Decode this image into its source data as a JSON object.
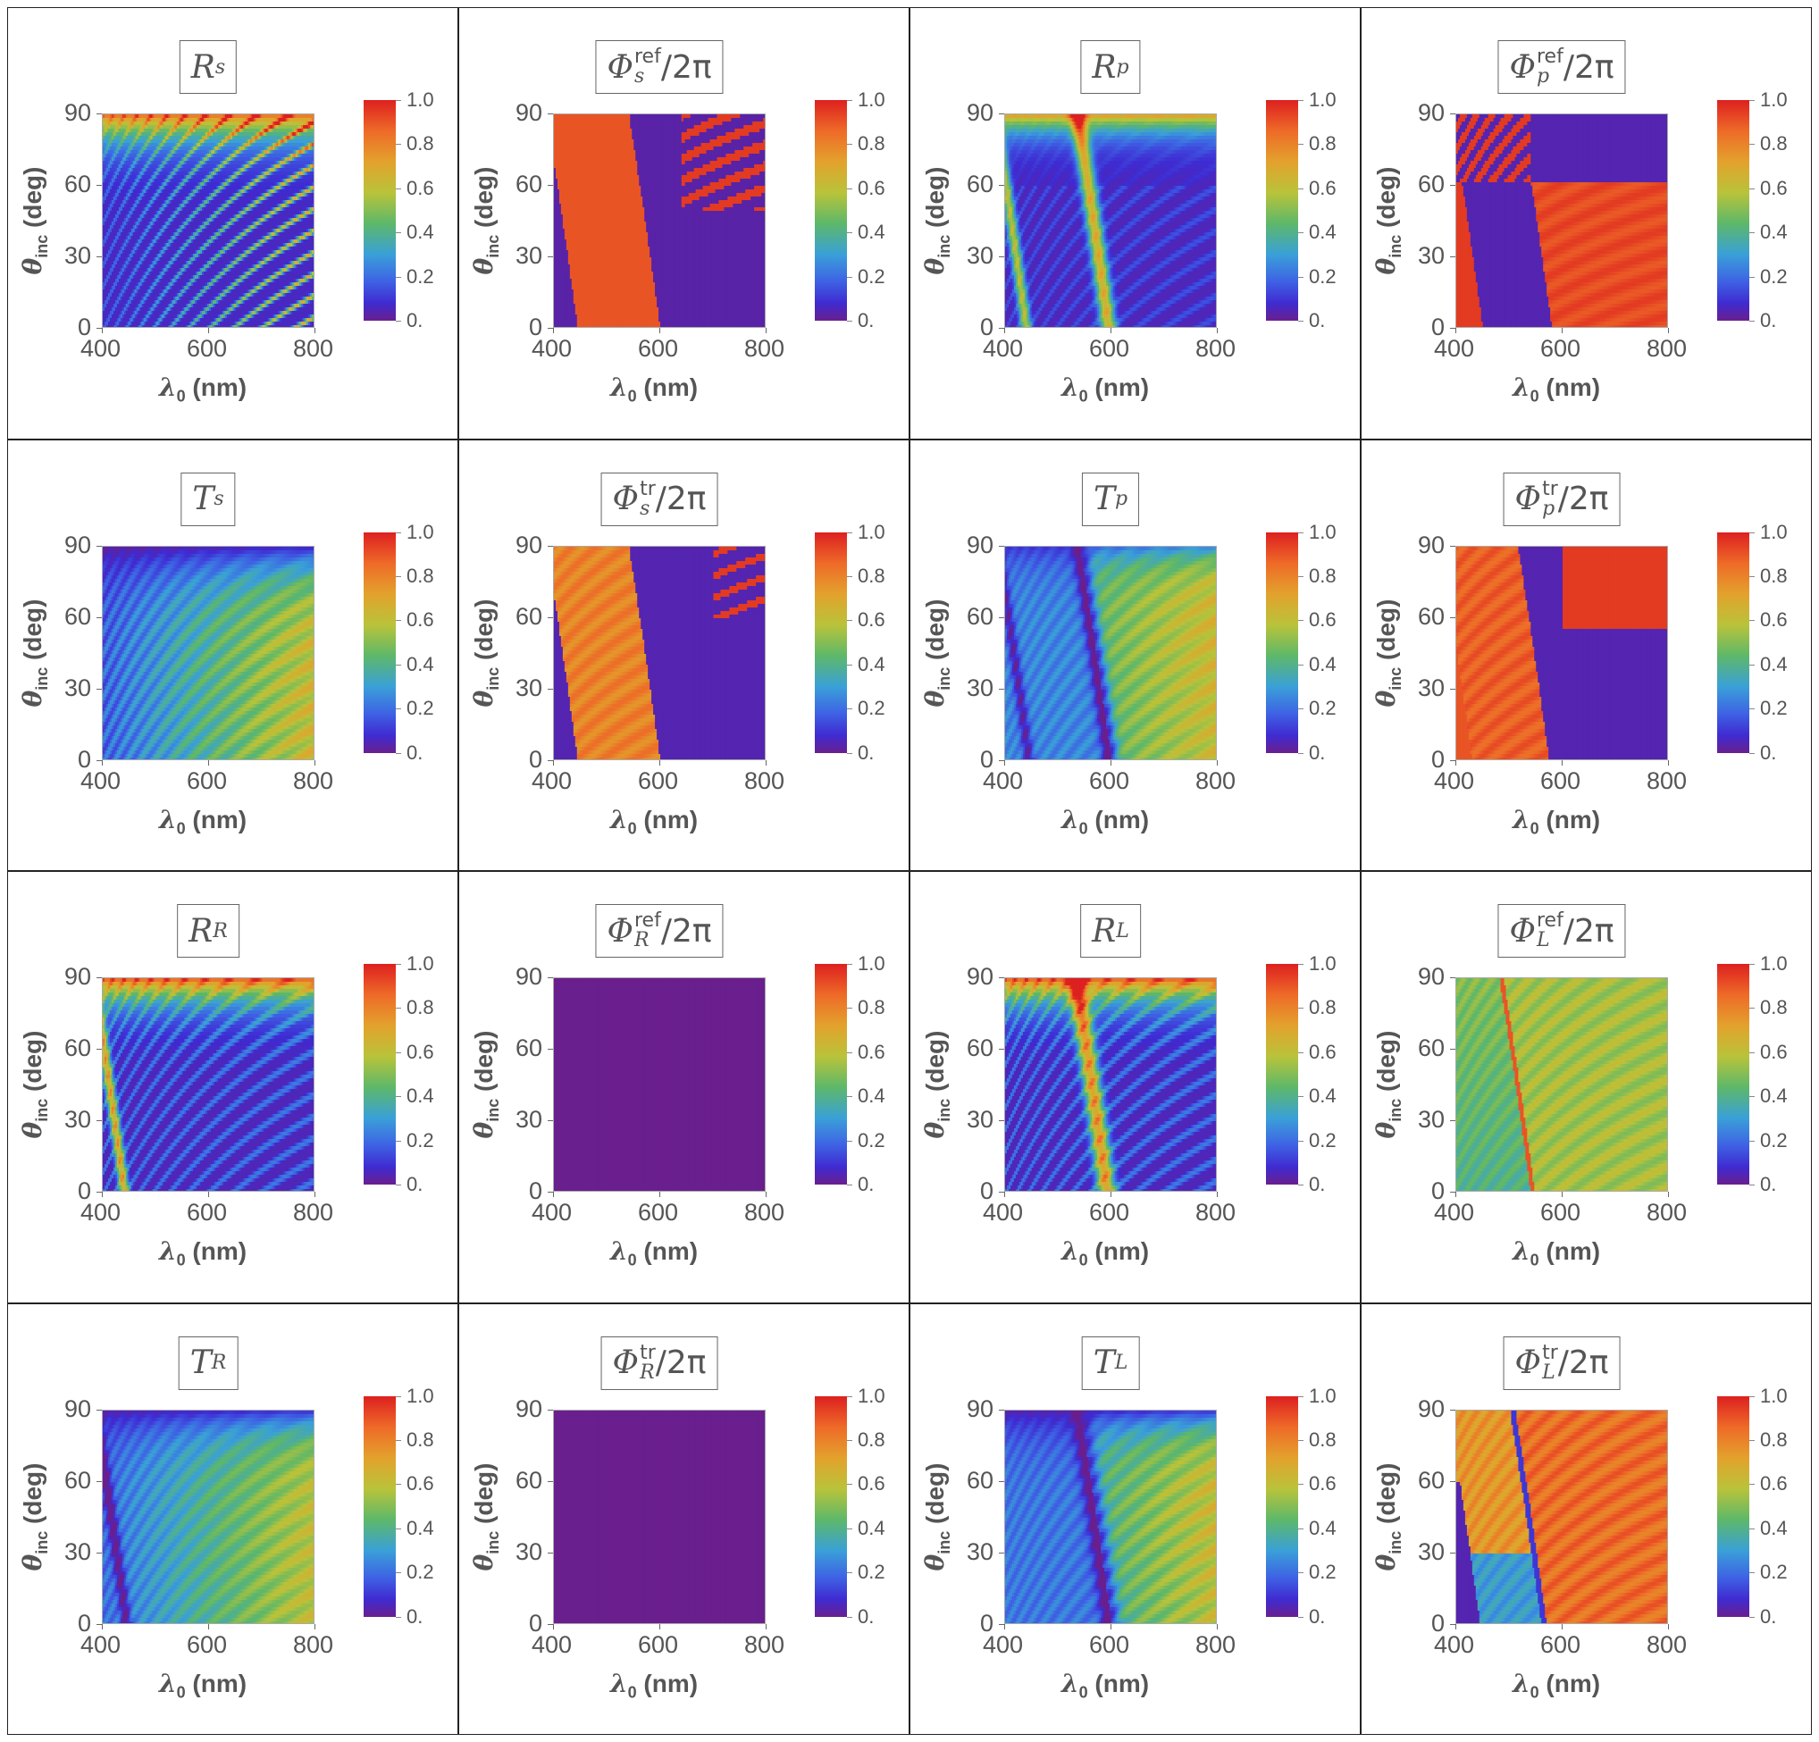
{
  "chart_data": {
    "type": "heatmap",
    "layout": "4x4 grid",
    "x_axis": {
      "label": "λ0 (nm)",
      "ticks": [
        "400",
        "600",
        "800"
      ],
      "range": [
        400,
        800
      ]
    },
    "y_axis": {
      "label": "θinc (deg)",
      "ticks": [
        "0",
        "30",
        "60",
        "90"
      ],
      "range": [
        0,
        90
      ]
    },
    "colorbar": {
      "ticks": [
        "0.",
        "0.2",
        "0.4",
        "0.6",
        "0.8",
        "1.0"
      ],
      "range": [
        0,
        1
      ]
    },
    "panels": [
      {
        "title": {
          "sym": "R",
          "sub": "s",
          "sup": "",
          "suffix": ""
        },
        "kind": "R_s"
      },
      {
        "title": {
          "sym": "Φ",
          "sub": "s",
          "sup": "ref",
          "suffix": "/2π"
        },
        "kind": "phi_ref_s"
      },
      {
        "title": {
          "sym": "R",
          "sub": "p",
          "sup": "",
          "suffix": ""
        },
        "kind": "R_p"
      },
      {
        "title": {
          "sym": "Φ",
          "sub": "p",
          "sup": "ref",
          "suffix": "/2π"
        },
        "kind": "phi_ref_p"
      },
      {
        "title": {
          "sym": "T",
          "sub": "s",
          "sup": "",
          "suffix": ""
        },
        "kind": "T_s"
      },
      {
        "title": {
          "sym": "Φ",
          "sub": "s",
          "sup": "tr",
          "suffix": "/2π"
        },
        "kind": "phi_tr_s"
      },
      {
        "title": {
          "sym": "T",
          "sub": "p",
          "sup": "",
          "suffix": ""
        },
        "kind": "T_p"
      },
      {
        "title": {
          "sym": "Φ",
          "sub": "p",
          "sup": "tr",
          "suffix": "/2π"
        },
        "kind": "phi_tr_p"
      },
      {
        "title": {
          "sym": "R",
          "sub": "R",
          "sup": "",
          "suffix": ""
        },
        "kind": "R_R"
      },
      {
        "title": {
          "sym": "Φ",
          "sub": "R",
          "sup": "ref",
          "suffix": "/2π"
        },
        "kind": "flat"
      },
      {
        "title": {
          "sym": "R",
          "sub": "L",
          "sup": "",
          "suffix": ""
        },
        "kind": "R_L"
      },
      {
        "title": {
          "sym": "Φ",
          "sub": "L",
          "sup": "ref",
          "suffix": "/2π"
        },
        "kind": "phi_ref_L"
      },
      {
        "title": {
          "sym": "T",
          "sub": "R",
          "sup": "",
          "suffix": ""
        },
        "kind": "T_R"
      },
      {
        "title": {
          "sym": "Φ",
          "sub": "R",
          "sup": "tr",
          "suffix": "/2π"
        },
        "kind": "flat"
      },
      {
        "title": {
          "sym": "T",
          "sub": "L",
          "sup": "",
          "suffix": ""
        },
        "kind": "T_L"
      },
      {
        "title": {
          "sym": "Φ",
          "sub": "L",
          "sup": "tr",
          "suffix": "/2π"
        },
        "kind": "phi_tr_L"
      }
    ]
  }
}
